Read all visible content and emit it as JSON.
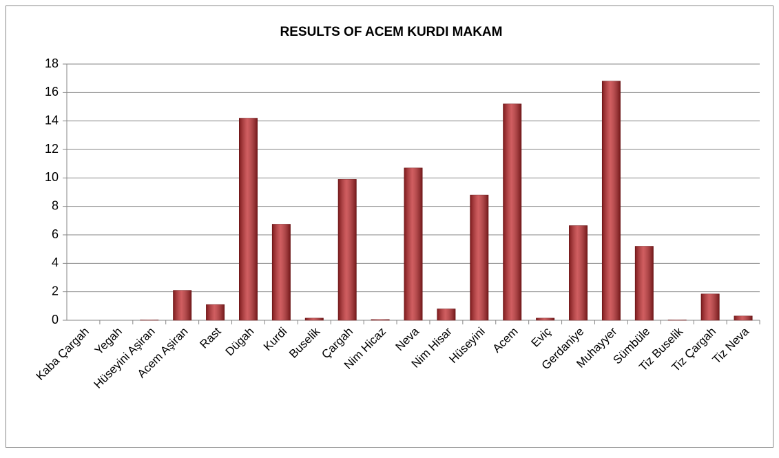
{
  "chart_data": {
    "type": "bar",
    "title": "RESULTS OF ACEM KURDI MAKAM",
    "categories": [
      "Kaba Çargah",
      "Yegah",
      "Hüseyini Aşiran",
      "Acem Aşiran",
      "Rast",
      "Dügah",
      "Kurdi",
      "Buselik",
      "Çargah",
      "Nim Hicaz",
      "Neva",
      "Nim Hisar",
      "Hüseyini",
      "Acem",
      "Eviç",
      "Gerdaniye",
      "Muhayyer",
      "Sümbüle",
      "Tiz Buselik",
      "Tiz Çargah",
      "Tiz Neva"
    ],
    "values": [
      0,
      0,
      0.02,
      2.1,
      1.1,
      14.2,
      6.75,
      0.15,
      9.9,
      0.05,
      10.7,
      0.8,
      8.8,
      15.2,
      0.15,
      6.65,
      16.8,
      5.2,
      0.02,
      1.85,
      0.3
    ],
    "color": "#c0282b",
    "ylim": [
      0,
      18
    ],
    "yticks": [
      0,
      2,
      4,
      6,
      8,
      10,
      12,
      14,
      16,
      18
    ],
    "grid": true
  }
}
